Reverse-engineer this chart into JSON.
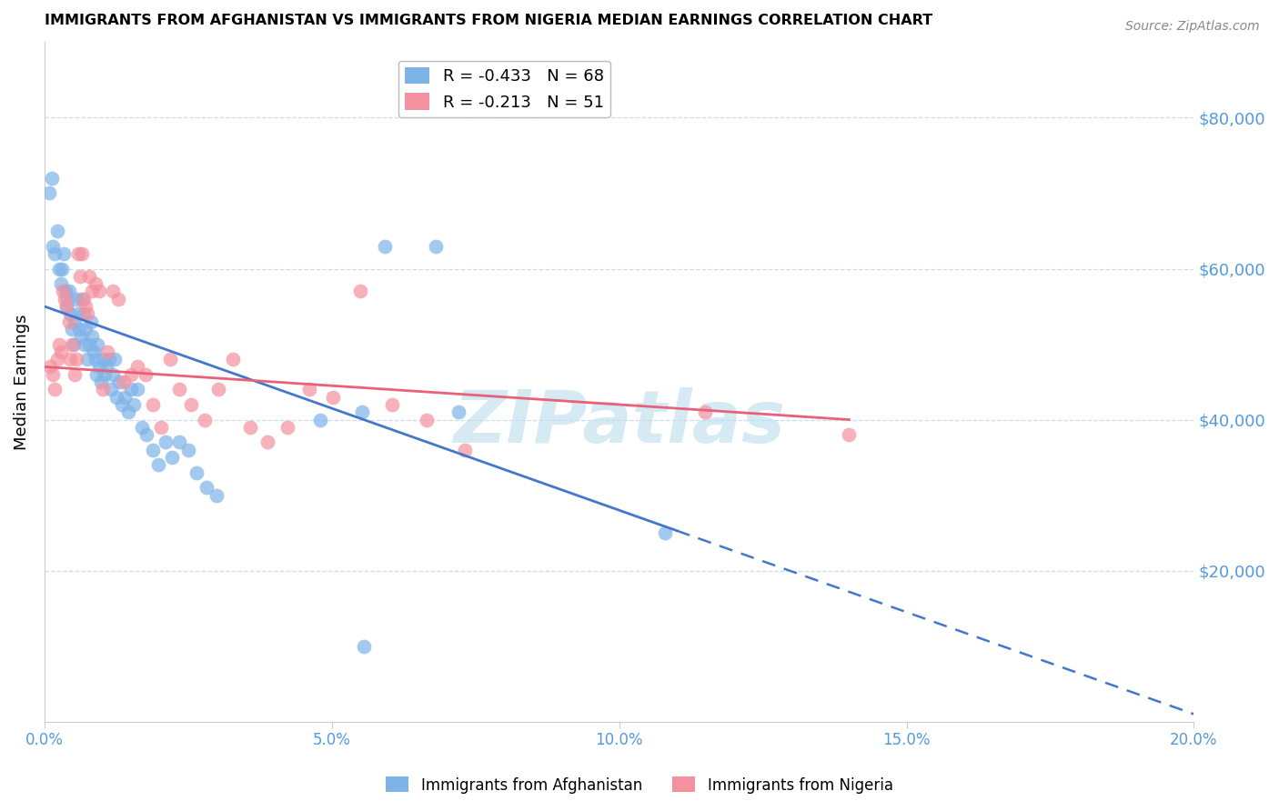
{
  "title": "IMMIGRANTS FROM AFGHANISTAN VS IMMIGRANTS FROM NIGERIA MEDIAN EARNINGS CORRELATION CHART",
  "source": "Source: ZipAtlas.com",
  "ylabel": "Median Earnings",
  "xlabel_ticks": [
    "0.0%",
    "5.0%",
    "10.0%",
    "15.0%",
    "20.0%"
  ],
  "xlabel_vals": [
    0.0,
    5.0,
    10.0,
    15.0,
    20.0
  ],
  "ytick_vals": [
    20000,
    40000,
    60000,
    80000
  ],
  "ytick_labels": [
    "$20,000",
    "$40,000",
    "$60,000",
    "$80,000"
  ],
  "xlim": [
    0.0,
    20.0
  ],
  "ylim": [
    0,
    90000
  ],
  "afghanistan_R": -0.433,
  "afghanistan_N": 68,
  "nigeria_R": -0.213,
  "nigeria_N": 51,
  "color_afghanistan": "#7EB3E8",
  "color_nigeria": "#F4919E",
  "color_trendline_afghanistan": "#4477CC",
  "color_trendline_nigeria": "#E8607A",
  "color_axis_labels": "#5599DD",
  "watermark_text": "ZIPatlas",
  "watermark_color": "#BBDDEE",
  "afg_trendline_y0": 55000,
  "afg_trendline_slope": -2700,
  "afg_solid_end": 11.0,
  "afg_dashed_end": 20.0,
  "nig_trendline_y0": 47000,
  "nig_trendline_slope": -500,
  "nig_solid_end": 14.0,
  "afghanistan_x": [
    0.08,
    0.12,
    0.15,
    0.18,
    0.22,
    0.25,
    0.28,
    0.3,
    0.33,
    0.36,
    0.38,
    0.4,
    0.42,
    0.45,
    0.47,
    0.5,
    0.52,
    0.55,
    0.58,
    0.6,
    0.63,
    0.65,
    0.68,
    0.7,
    0.72,
    0.75,
    0.78,
    0.8,
    0.82,
    0.85,
    0.88,
    0.9,
    0.92,
    0.95,
    0.98,
    1.02,
    1.05,
    1.08,
    1.12,
    1.15,
    1.18,
    1.22,
    1.25,
    1.3,
    1.35,
    1.4,
    1.45,
    1.5,
    1.55,
    1.62,
    1.7,
    1.78,
    1.88,
    1.98,
    2.1,
    2.22,
    2.35,
    2.5,
    2.65,
    2.82,
    3.0,
    4.8,
    5.52,
    5.92,
    6.8,
    7.2,
    10.8,
    5.55
  ],
  "afghanistan_y": [
    70000,
    72000,
    63000,
    62000,
    65000,
    60000,
    58000,
    60000,
    62000,
    57000,
    55000,
    56000,
    57000,
    54000,
    52000,
    50000,
    53000,
    56000,
    54000,
    52000,
    51000,
    56000,
    54000,
    50000,
    52000,
    48000,
    50000,
    53000,
    51000,
    49000,
    48000,
    46000,
    50000,
    47000,
    45000,
    48000,
    46000,
    47000,
    48000,
    44000,
    46000,
    48000,
    43000,
    45000,
    42000,
    43000,
    41000,
    44000,
    42000,
    44000,
    39000,
    38000,
    36000,
    34000,
    37000,
    35000,
    37000,
    36000,
    33000,
    31000,
    30000,
    40000,
    41000,
    63000,
    63000,
    41000,
    25000,
    10000
  ],
  "nigeria_x": [
    0.1,
    0.15,
    0.18,
    0.22,
    0.25,
    0.28,
    0.32,
    0.35,
    0.38,
    0.42,
    0.45,
    0.48,
    0.52,
    0.55,
    0.58,
    0.62,
    0.65,
    0.68,
    0.72,
    0.75,
    0.78,
    0.82,
    0.88,
    0.95,
    1.02,
    1.1,
    1.18,
    1.28,
    1.38,
    1.5,
    1.62,
    1.75,
    1.88,
    2.02,
    2.18,
    2.35,
    2.55,
    2.78,
    3.02,
    3.28,
    3.58,
    3.88,
    4.22,
    4.6,
    5.02,
    5.5,
    6.05,
    6.65,
    7.32,
    11.5,
    14.0
  ],
  "nigeria_y": [
    47000,
    46000,
    44000,
    48000,
    50000,
    49000,
    57000,
    56000,
    55000,
    53000,
    48000,
    50000,
    46000,
    48000,
    62000,
    59000,
    62000,
    56000,
    55000,
    54000,
    59000,
    57000,
    58000,
    57000,
    44000,
    49000,
    57000,
    56000,
    45000,
    46000,
    47000,
    46000,
    42000,
    39000,
    48000,
    44000,
    42000,
    40000,
    44000,
    48000,
    39000,
    37000,
    39000,
    44000,
    43000,
    57000,
    42000,
    40000,
    36000,
    41000,
    38000
  ]
}
